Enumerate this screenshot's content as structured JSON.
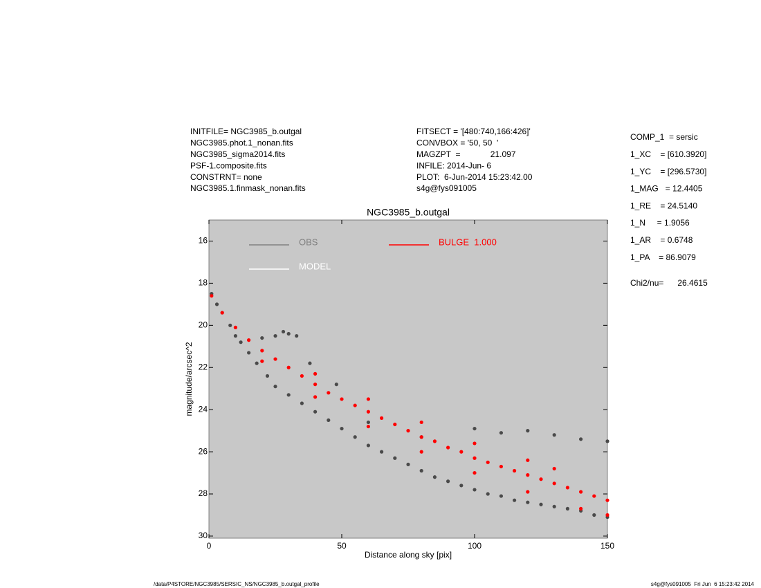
{
  "chart_data": {
    "type": "scatter",
    "title": "NGC3985_b.outgal",
    "x_label": "Distance along sky [pix]",
    "y_label": "magnitude/arcsec^2",
    "xlim": [
      0,
      150
    ],
    "xticks": [
      0,
      50,
      100,
      150
    ],
    "ylim": [
      30.1,
      15
    ],
    "yticks": [
      16,
      18,
      20,
      22,
      24,
      26,
      28,
      30
    ],
    "background": "#c8c8c8",
    "annotations": {
      "left": [
        "INITFILE= NGC3985_b.outgal",
        "NGC3985.phot.1_nonan.fits",
        "NGC3985_sigma2014.fits",
        "PSF-1.composite.fits",
        "CONSTRNT= none",
        "NGC3985.1.finmask_nonan.fits"
      ],
      "middle": [
        "FITSECT = '[480:740,166:426]'",
        "CONVBOX = '50, 50  '",
        "MAGZPT  =             21.097",
        "INFILE: 2014-Jun- 6",
        "PLOT:  6-Jun-2014 15:23:42.00",
        "s4g@fys091005"
      ],
      "right": [
        "COMP_1  = sersic",
        "1_XC    = [610.3920]",
        "1_YC    = [296.5730]",
        "1_MAG   = 12.4405",
        "1_RE    = 24.5140",
        "1_N     = 1.9056",
        "1_AR    = 0.6748",
        "1_PA    = 86.9079"
      ],
      "chi2": "Chi2/nu=      26.4615"
    },
    "footer_left": "/data/P4STORE/NGC3985/SERSIC_NS/NGC3985_b.outgal_profile",
    "footer_right": "s4g@fys091005  Fri Jun  6 15:23:42 2014",
    "series": [
      {
        "name": "OBS",
        "color": "#4a4a4a",
        "legend_color": "#808080",
        "x": [
          1,
          3,
          5,
          8,
          10,
          12,
          15,
          18,
          20,
          22,
          25,
          25,
          28,
          30,
          30,
          33,
          35,
          38,
          40,
          45,
          48,
          50,
          55,
          60,
          65,
          70,
          75,
          80,
          85,
          90,
          95,
          100,
          105,
          110,
          115,
          120,
          125,
          130,
          135,
          140,
          145,
          150,
          100,
          110,
          120,
          130,
          140,
          150,
          60,
          80
        ],
        "values": [
          18.5,
          19.0,
          19.4,
          20.0,
          20.5,
          20.8,
          21.3,
          21.8,
          20.6,
          22.4,
          20.5,
          22.9,
          20.3,
          20.4,
          23.3,
          20.5,
          23.7,
          21.8,
          24.1,
          24.5,
          22.8,
          24.9,
          25.3,
          25.7,
          26.0,
          26.3,
          26.6,
          26.9,
          27.2,
          27.4,
          27.6,
          27.8,
          28.0,
          28.1,
          28.3,
          28.4,
          28.5,
          28.6,
          28.7,
          28.8,
          29.0,
          29.1,
          24.9,
          25.1,
          25.0,
          25.2,
          25.4,
          25.5,
          24.6,
          25.3
        ]
      },
      {
        "name": "BULGE  1.000",
        "color": "#ff0000",
        "legend_color": "#ff0000",
        "x": [
          1,
          5,
          10,
          15,
          20,
          25,
          30,
          35,
          40,
          45,
          50,
          55,
          60,
          65,
          70,
          75,
          80,
          85,
          90,
          95,
          100,
          105,
          110,
          115,
          120,
          125,
          130,
          135,
          140,
          145,
          150,
          20,
          40,
          60,
          80,
          100,
          120,
          140,
          150,
          40,
          60,
          80,
          100,
          120,
          130
        ],
        "values": [
          18.6,
          19.4,
          20.1,
          20.7,
          21.2,
          21.6,
          22.0,
          22.4,
          22.8,
          23.2,
          23.5,
          23.8,
          24.1,
          24.4,
          24.7,
          25.0,
          25.3,
          25.5,
          25.8,
          26.0,
          26.3,
          26.5,
          26.7,
          26.9,
          27.1,
          27.3,
          27.5,
          27.7,
          27.9,
          28.1,
          28.3,
          21.7,
          23.4,
          24.8,
          26.0,
          27.0,
          27.9,
          28.7,
          29.0,
          22.3,
          23.5,
          24.6,
          25.6,
          26.4,
          26.8
        ]
      },
      {
        "name": "MODEL",
        "color": "#ffffff",
        "legend_color": "#ffffff",
        "x": [],
        "values": []
      }
    ]
  }
}
